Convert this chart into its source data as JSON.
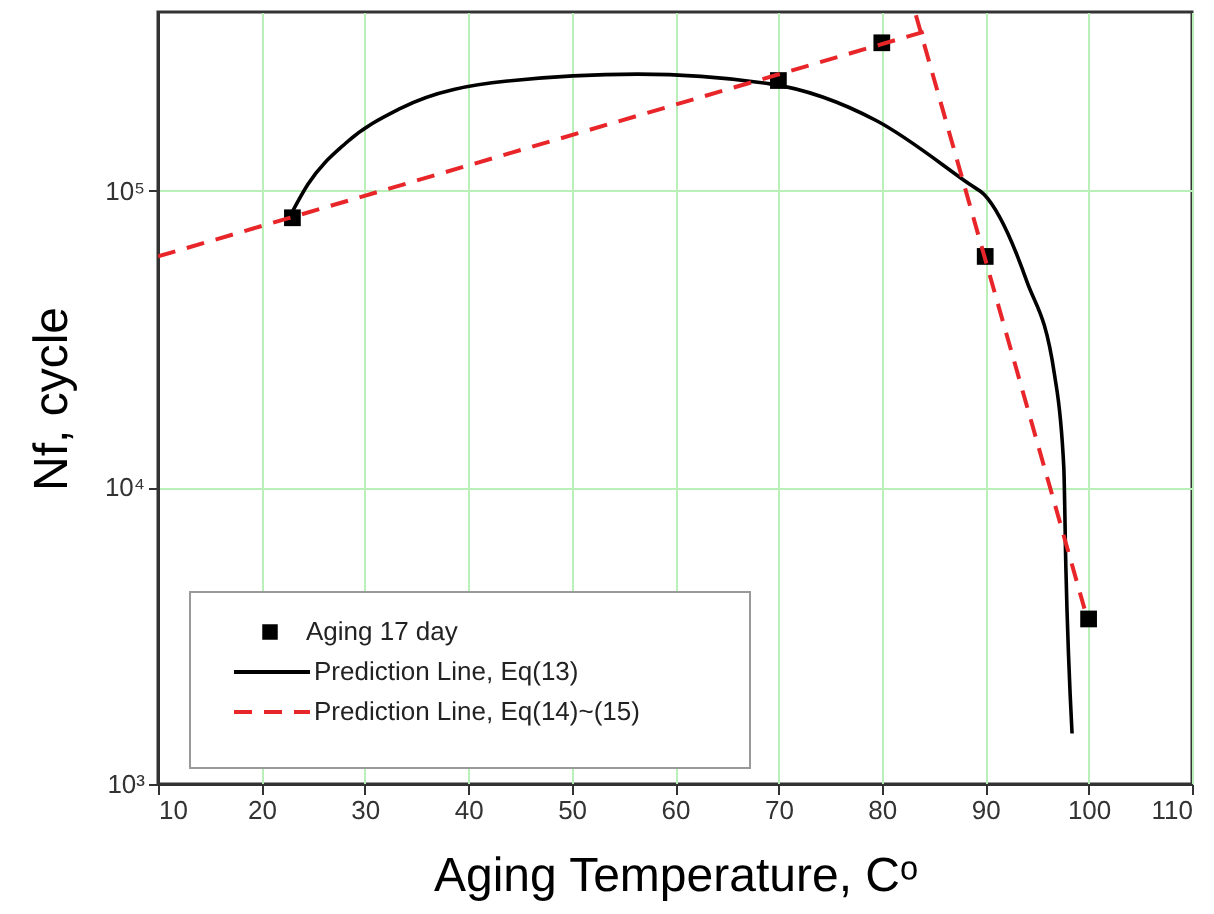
{
  "chart_data": {
    "type": "line",
    "xlabel": "Aging Temperature, Cᵒ",
    "ylabel": "Nf, cycle",
    "log": "y",
    "grid": true,
    "legend": "bottom left",
    "xlim": [
      10,
      110
    ],
    "xticks": [
      10,
      20,
      30,
      40,
      50,
      60,
      70,
      80,
      90,
      100,
      110
    ],
    "ylim": [
      1000,
      400000
    ],
    "yticks": [
      {
        "value": 1000,
        "label": "10³"
      },
      {
        "value": 10000,
        "label": "10⁴"
      },
      {
        "value": 100000,
        "label": "10⁵"
      }
    ],
    "series": [
      {
        "name": "Aging 17 day",
        "type": "scatter",
        "marker": "square",
        "color": "#000000",
        "x": [
          23,
          70,
          80,
          90,
          100
        ],
        "values": [
          81000,
          235000,
          315000,
          60000,
          3600
        ]
      },
      {
        "name": "Prediction Line, Eq(13)",
        "line_style": "solid",
        "color": "#000000",
        "x": [
          23,
          24.5,
          28.2,
          33.4,
          43.8,
          56.4,
          69.2,
          79.5,
          88.5,
          89.9,
          94,
          96.7,
          97.6,
          97.8,
          98.4
        ],
        "values": [
          85000,
          105000,
          145000,
          189000,
          234000,
          247000,
          229000,
          172000,
          105000,
          97000,
          49700,
          24000,
          11700,
          5400,
          1480
        ]
      },
      {
        "name": "Prediction Line, Eq(14)~(15)",
        "line_style": "dashed",
        "color": "#e8262a",
        "x": [
          10,
          84.3
        ],
        "values": [
          60000,
          345000
        ]
      },
      {
        "line_style": "dashed",
        "color": "#e8262a",
        "x": [
          83.3,
          99.6
        ],
        "values": [
          390000,
          3900
        ]
      }
    ]
  }
}
